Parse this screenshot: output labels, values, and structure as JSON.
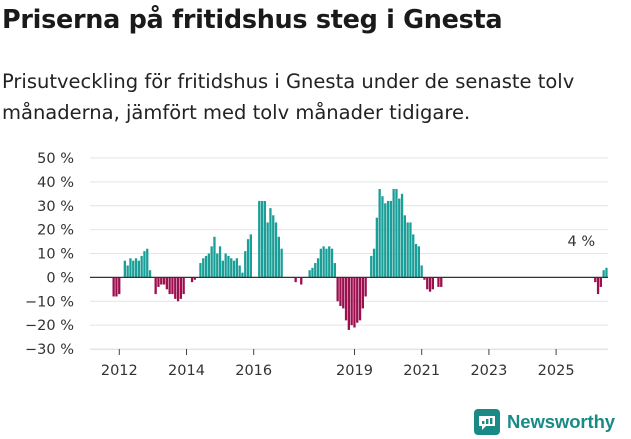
{
  "title": "Priserna på fritidshus steg i Gnesta",
  "subtitle": "Prisutveckling för fritidshus i Gnesta under de senaste tolv månaderna, jämfört med tolv månader tidigare.",
  "brand": {
    "name": "Newsworthy",
    "icon": "newsworthy-logo-icon"
  },
  "colors": {
    "positive": "#1a9e98",
    "negative": "#9c0f4e",
    "zero_line": "#333333",
    "grid": "#e4e4e4"
  },
  "chart_data": {
    "type": "bar",
    "y_unit": "%",
    "ylim": [
      -30,
      50
    ],
    "y_ticks": [
      {
        "value": 50,
        "label": "50 %"
      },
      {
        "value": 40,
        "label": "40 %"
      },
      {
        "value": 30,
        "label": "30 %"
      },
      {
        "value": 20,
        "label": "20 %"
      },
      {
        "value": 10,
        "label": "10 %"
      },
      {
        "value": 0,
        "label": "0 %"
      },
      {
        "value": -10,
        "label": "−10 %"
      },
      {
        "value": -20,
        "label": "−20 %"
      },
      {
        "value": -30,
        "label": "−30 %"
      }
    ],
    "x_ticks": [
      {
        "month": "2012-01",
        "label": "2012"
      },
      {
        "month": "2014-01",
        "label": "2014"
      },
      {
        "month": "2016-01",
        "label": "2016"
      },
      {
        "month": "2019-01",
        "label": "2019"
      },
      {
        "month": "2021-01",
        "label": "2021"
      },
      {
        "month": "2023-01",
        "label": "2023"
      },
      {
        "month": "2025-01",
        "label": "2025"
      }
    ],
    "start_month": "2011-11",
    "end_month": "2025-12",
    "annotation": {
      "month": "2025-10",
      "value": 4,
      "label": "4 %"
    },
    "values": [
      -8,
      -8,
      -7,
      null,
      7,
      5,
      8,
      7,
      8,
      7,
      9,
      11,
      12,
      3,
      null,
      -7,
      -4,
      -3,
      -3,
      -5,
      -7,
      -7,
      -9,
      -10,
      -9,
      -7,
      null,
      null,
      -2,
      -1,
      null,
      6,
      8,
      9,
      10,
      13,
      17,
      10,
      13,
      7,
      10,
      9,
      8,
      7,
      8,
      5,
      2,
      11,
      16,
      18,
      null,
      null,
      32,
      32,
      32,
      23,
      29,
      26,
      23,
      17,
      12,
      null,
      null,
      null,
      null,
      -2,
      null,
      -3,
      null,
      null,
      3,
      4,
      6,
      8,
      12,
      13,
      12,
      13,
      12,
      6,
      -10,
      -12,
      -13,
      -18,
      -22,
      -20,
      -21,
      -19,
      -18,
      -13,
      -8,
      null,
      9,
      12,
      25,
      37,
      34,
      31,
      32,
      32,
      37,
      37,
      33,
      35,
      26,
      23,
      23,
      18,
      14,
      13,
      5,
      -1,
      -5,
      -6,
      -5,
      null,
      -4,
      -4,
      null,
      null,
      null,
      null,
      null,
      null,
      null,
      null,
      null,
      null,
      null,
      null,
      null,
      null,
      null,
      null,
      null,
      null,
      null,
      null,
      null,
      null,
      null,
      null,
      null,
      null,
      null,
      null,
      null,
      null,
      null,
      null,
      null,
      null,
      null,
      null,
      null,
      null,
      null,
      null,
      null,
      null,
      null,
      null,
      null,
      null,
      null,
      null,
      null,
      null,
      null,
      null,
      null,
      null,
      -2,
      -7,
      -4,
      3,
      4,
      null
    ]
  }
}
